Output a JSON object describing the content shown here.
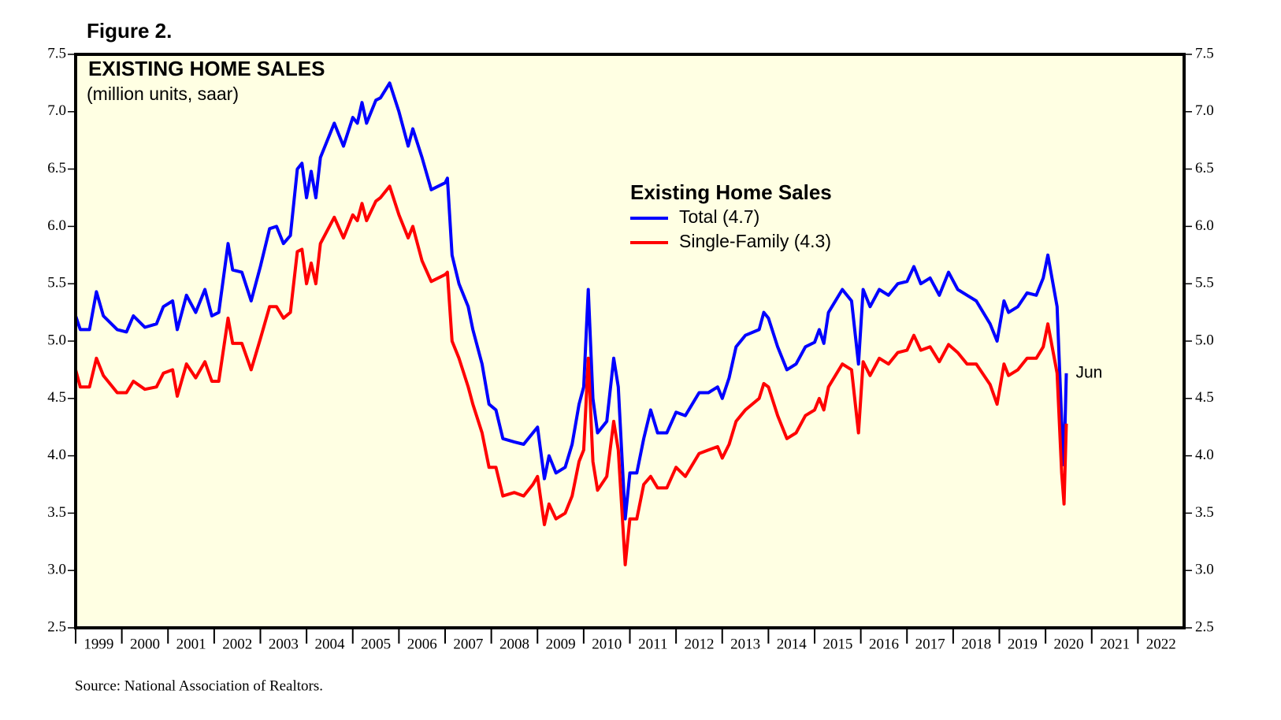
{
  "chart_data": {
    "type": "line",
    "figure_label": "Figure 2.",
    "title": "EXISTING HOME SALES",
    "subtitle": "(million units, saar)",
    "legend_title": "Existing Home Sales",
    "annotation": "Jun",
    "source": "Source: National Association of Realtors.",
    "xlim": [
      1999,
      2023
    ],
    "xticks": [
      1999,
      2000,
      2001,
      2002,
      2003,
      2004,
      2005,
      2006,
      2007,
      2008,
      2009,
      2010,
      2011,
      2012,
      2013,
      2014,
      2015,
      2016,
      2017,
      2018,
      2019,
      2020,
      2021,
      2022
    ],
    "ylim": [
      2.5,
      7.5
    ],
    "yticks": [
      {
        "value": 2.5,
        "label": "2.5"
      },
      {
        "value": 3,
        "label": "3.0"
      },
      {
        "value": 3.5,
        "label": "3.5"
      },
      {
        "value": 4,
        "label": "4.0"
      },
      {
        "value": 4.5,
        "label": "4.5"
      },
      {
        "value": 5,
        "label": "5.0"
      },
      {
        "value": 5.5,
        "label": "5.5"
      },
      {
        "value": 6,
        "label": "6.0"
      },
      {
        "value": 6.5,
        "label": "6.5"
      },
      {
        "value": 7,
        "label": "7.0"
      },
      {
        "value": 7.5,
        "label": "7.5"
      }
    ],
    "x": [
      1999.0,
      1999.1,
      1999.3,
      1999.45,
      1999.6,
      1999.9,
      2000.1,
      2000.25,
      2000.5,
      2000.75,
      2000.9,
      2001.1,
      2001.2,
      2001.4,
      2001.6,
      2001.8,
      2001.95,
      2002.1,
      2002.3,
      2002.4,
      2002.6,
      2002.8,
      2003.0,
      2003.2,
      2003.35,
      2003.5,
      2003.65,
      2003.8,
      2003.9,
      2004.0,
      2004.1,
      2004.2,
      2004.3,
      2004.6,
      2004.8,
      2005.0,
      2005.1,
      2005.2,
      2005.3,
      2005.5,
      2005.6,
      2005.8,
      2006.0,
      2006.2,
      2006.3,
      2006.5,
      2006.7,
      2006.85,
      2007.0,
      2007.05,
      2007.15,
      2007.3,
      2007.5,
      2007.6,
      2007.8,
      2007.95,
      2008.1,
      2008.25,
      2008.5,
      2008.7,
      2008.9,
      2009.0,
      2009.15,
      2009.25,
      2009.4,
      2009.6,
      2009.75,
      2009.9,
      2010.0,
      2010.1,
      2010.2,
      2010.3,
      2010.5,
      2010.65,
      2010.75,
      2010.9,
      2011.0,
      2011.15,
      2011.3,
      2011.45,
      2011.6,
      2011.8,
      2012.0,
      2012.2,
      2012.5,
      2012.7,
      2012.9,
      2013.0,
      2013.15,
      2013.3,
      2013.5,
      2013.8,
      2013.9,
      2014.0,
      2014.2,
      2014.4,
      2014.6,
      2014.8,
      2015.0,
      2015.1,
      2015.2,
      2015.3,
      2015.6,
      2015.8,
      2015.95,
      2016.05,
      2016.2,
      2016.4,
      2016.6,
      2016.8,
      2017.0,
      2017.15,
      2017.3,
      2017.5,
      2017.7,
      2017.9,
      2018.1,
      2018.3,
      2018.5,
      2018.8,
      2018.95,
      2019.1,
      2019.2,
      2019.4,
      2019.6,
      2019.8,
      2019.95,
      2020.05,
      2020.25,
      2020.35,
      2020.4,
      2020.45
    ],
    "series": [
      {
        "name": "Total (4.7)",
        "color": "#0000ff",
        "values": [
          5.22,
          5.1,
          5.1,
          5.43,
          5.22,
          5.1,
          5.08,
          5.22,
          5.12,
          5.15,
          5.3,
          5.35,
          5.1,
          5.4,
          5.25,
          5.45,
          5.22,
          5.25,
          5.85,
          5.62,
          5.6,
          5.35,
          5.65,
          5.98,
          6.0,
          5.85,
          5.92,
          6.5,
          6.55,
          6.25,
          6.48,
          6.25,
          6.6,
          6.9,
          6.7,
          6.95,
          6.9,
          7.08,
          6.9,
          7.1,
          7.12,
          7.25,
          7.0,
          6.7,
          6.85,
          6.6,
          6.32,
          6.35,
          6.38,
          6.42,
          5.75,
          5.5,
          5.3,
          5.1,
          4.8,
          4.45,
          4.4,
          4.15,
          4.12,
          4.1,
          4.2,
          4.25,
          3.8,
          4.0,
          3.85,
          3.9,
          4.1,
          4.45,
          4.6,
          5.45,
          4.5,
          4.2,
          4.3,
          4.85,
          4.6,
          3.45,
          3.85,
          3.85,
          4.15,
          4.4,
          4.2,
          4.2,
          4.38,
          4.35,
          4.55,
          4.55,
          4.6,
          4.5,
          4.68,
          4.95,
          5.05,
          5.1,
          5.25,
          5.2,
          4.95,
          4.75,
          4.8,
          4.95,
          4.99,
          5.1,
          4.98,
          5.25,
          5.45,
          5.35,
          4.8,
          5.45,
          5.3,
          5.45,
          5.4,
          5.5,
          5.52,
          5.65,
          5.5,
          5.55,
          5.4,
          5.6,
          5.45,
          5.4,
          5.35,
          5.15,
          5.0,
          5.35,
          5.25,
          5.3,
          5.42,
          5.4,
          5.55,
          5.75,
          5.3,
          4.3,
          3.92,
          4.72
        ]
      },
      {
        "name": "Single-Family (4.3)",
        "color": "#ff0000",
        "values": [
          4.75,
          4.6,
          4.6,
          4.85,
          4.7,
          4.55,
          4.55,
          4.65,
          4.58,
          4.6,
          4.72,
          4.75,
          4.52,
          4.8,
          4.68,
          4.82,
          4.65,
          4.65,
          5.2,
          4.98,
          4.98,
          4.75,
          5.02,
          5.3,
          5.3,
          5.2,
          5.25,
          5.78,
          5.8,
          5.5,
          5.68,
          5.5,
          5.85,
          6.08,
          5.9,
          6.1,
          6.05,
          6.2,
          6.05,
          6.22,
          6.25,
          6.35,
          6.1,
          5.9,
          6.0,
          5.7,
          5.52,
          5.55,
          5.58,
          5.6,
          5.0,
          4.85,
          4.6,
          4.45,
          4.2,
          3.9,
          3.9,
          3.65,
          3.68,
          3.65,
          3.75,
          3.82,
          3.4,
          3.58,
          3.45,
          3.5,
          3.65,
          3.95,
          4.05,
          4.85,
          3.95,
          3.7,
          3.82,
          4.3,
          4.05,
          3.05,
          3.45,
          3.45,
          3.75,
          3.82,
          3.72,
          3.72,
          3.9,
          3.82,
          4.02,
          4.05,
          4.08,
          3.98,
          4.1,
          4.3,
          4.4,
          4.5,
          4.63,
          4.6,
          4.35,
          4.15,
          4.2,
          4.35,
          4.4,
          4.5,
          4.4,
          4.6,
          4.8,
          4.75,
          4.2,
          4.82,
          4.7,
          4.85,
          4.8,
          4.9,
          4.92,
          5.05,
          4.92,
          4.95,
          4.82,
          4.97,
          4.9,
          4.8,
          4.8,
          4.62,
          4.45,
          4.8,
          4.7,
          4.75,
          4.85,
          4.85,
          4.95,
          5.15,
          4.72,
          3.85,
          3.58,
          4.28
        ]
      }
    ]
  }
}
